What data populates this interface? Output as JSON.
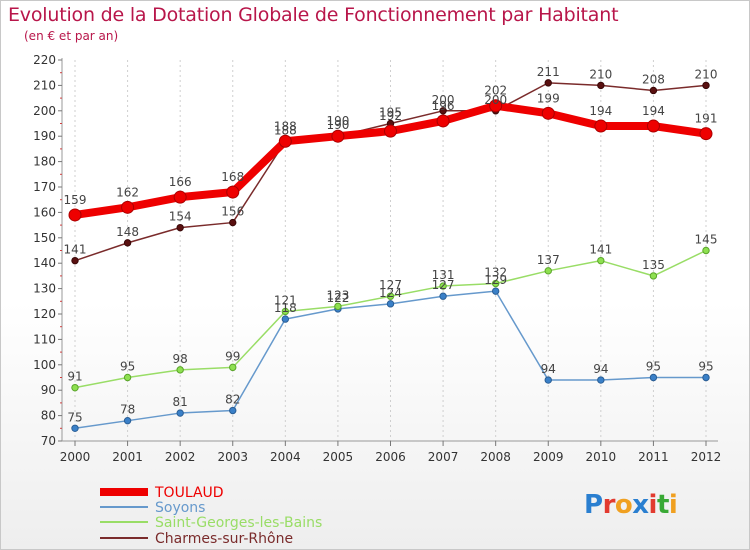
{
  "header": {
    "title": "Evolution de la Dotation Globale de Fonctionnement par Habitant",
    "subtitle": "(en € et par an)"
  },
  "logo": {
    "text": [
      "P",
      "r",
      "o",
      "x",
      "i",
      "t",
      "i"
    ],
    "colors": [
      "#2a7fd0",
      "#e23a2f",
      "#f0a020",
      "#2a7fd0",
      "#e23a2f",
      "#39a935",
      "#f0a020"
    ]
  },
  "chart_data": {
    "type": "line",
    "title": "Evolution de la Dotation Globale de Fonctionnement par Habitant",
    "subtitle": "(en € et par an)",
    "xlabel": "",
    "ylabel": "",
    "ylim": [
      70,
      220
    ],
    "yticks": [
      70,
      80,
      90,
      100,
      110,
      120,
      130,
      140,
      150,
      160,
      170,
      180,
      190,
      200,
      210,
      220
    ],
    "grid": "vertical",
    "x": [
      "2000",
      "2001",
      "2002",
      "2003",
      "2004",
      "2005",
      "2006",
      "2007",
      "2008",
      "2009",
      "2010",
      "2011",
      "2012"
    ],
    "series": [
      {
        "name": "TOULAUD",
        "color": "#ee0000",
        "values": [
          159,
          162,
          166,
          168,
          188,
          190,
          192,
          196,
          202,
          199,
          194,
          194,
          191
        ]
      },
      {
        "name": "Soyons",
        "color": "#6699cc",
        "values": [
          75,
          78,
          81,
          82,
          118,
          122,
          124,
          127,
          129,
          94,
          94,
          95,
          95
        ]
      },
      {
        "name": "Saint-Georges-les-Bains",
        "color": "#99dd66",
        "values": [
          91,
          95,
          98,
          99,
          121,
          123,
          127,
          131,
          132,
          137,
          141,
          135,
          145
        ]
      },
      {
        "name": "Charmes-sur-Rhône",
        "color": "#7a2b2b",
        "values": [
          141,
          148,
          154,
          156,
          188,
          190,
          195,
          200,
          200,
          211,
          210,
          208,
          210
        ]
      }
    ]
  }
}
